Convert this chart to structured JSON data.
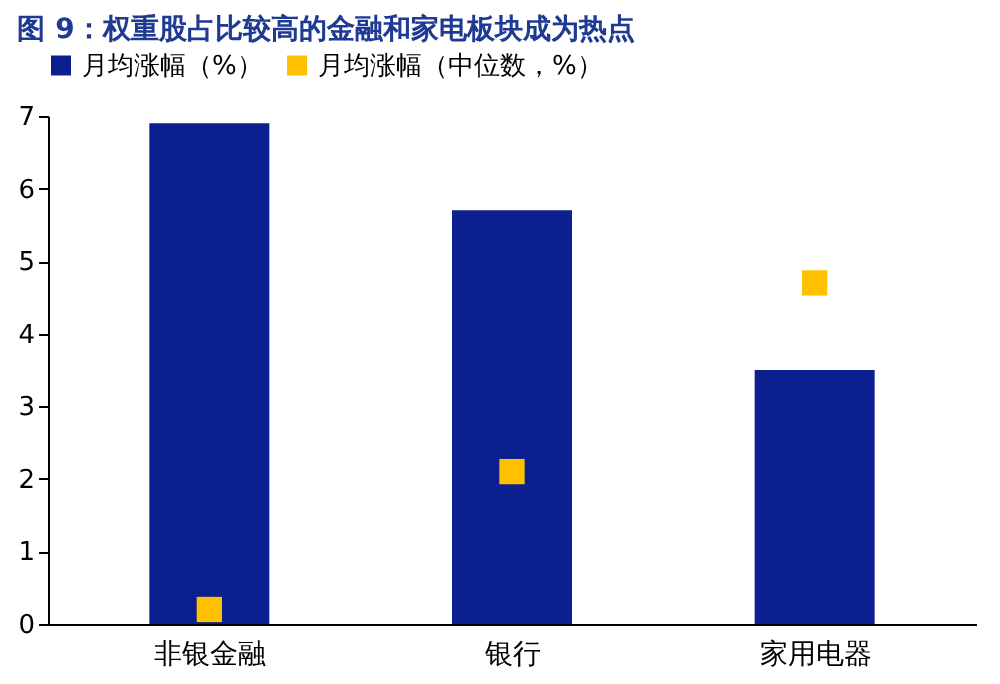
{
  "chart_data": {
    "type": "bar",
    "title": "图 9：权重股占比较高的金融和家电板块成为热点",
    "categories": [
      "非银金融",
      "银行",
      "家用电器"
    ],
    "series": [
      {
        "name": "月均涨幅（%）",
        "color": "#0c1f8f",
        "values": [
          6.9,
          5.7,
          3.5
        ]
      },
      {
        "name": "月均涨幅（中位数，%）",
        "color": "#ffc000",
        "type": "scatter",
        "marker": "square",
        "values": [
          0.2,
          2.1,
          4.7
        ]
      }
    ],
    "ylim": [
      0,
      7
    ],
    "yticks": [
      0,
      1,
      2,
      3,
      4,
      5,
      6,
      7
    ],
    "grid": false,
    "legend": "top"
  }
}
